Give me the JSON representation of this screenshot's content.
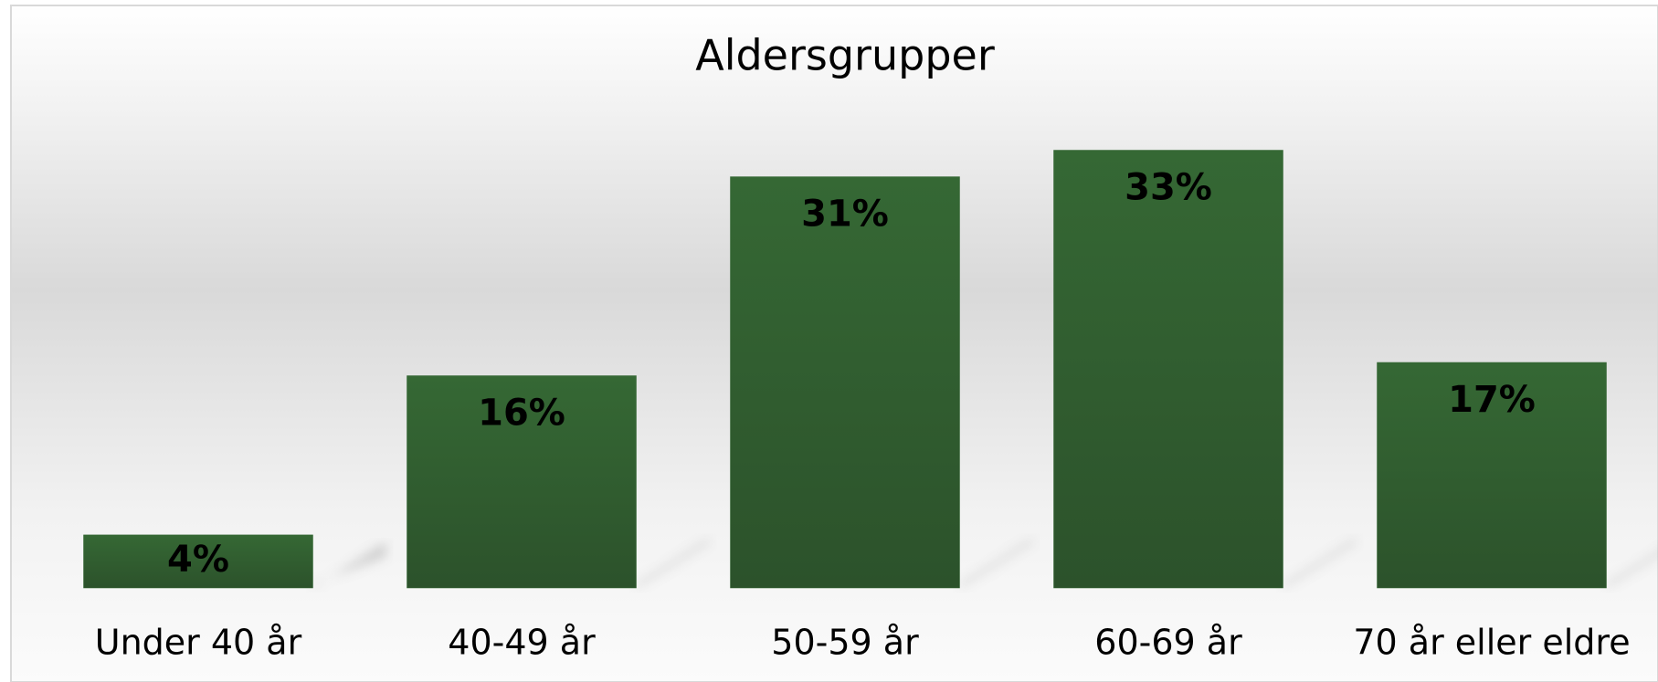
{
  "chart_data": {
    "type": "bar",
    "title": "Aldersgrupper",
    "categories": [
      "Under 40 år",
      "40-49 år",
      "50-59 år",
      "60-69 år",
      "70 år eller eldre"
    ],
    "values": [
      4,
      16,
      31,
      33,
      17
    ],
    "value_labels": [
      "4%",
      "16%",
      "31%",
      "33%",
      "17%"
    ],
    "color": "#336633"
  }
}
